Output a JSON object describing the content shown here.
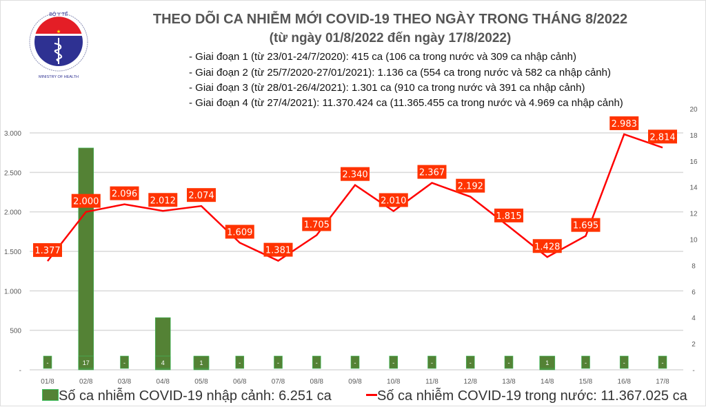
{
  "logo": {
    "text_top": "BỘ Y TẾ",
    "text_bottom": "MINISTRY OF HEALTH"
  },
  "header": {
    "title": "THEO DÕI CA NHIỄM MỚI COVID-19 THEO NGÀY TRONG THÁNG 8/2022",
    "subtitle": "(từ ngày 01/8/2022 đến ngày 17/8/2022)",
    "phases": [
      "- Giai đoạn 1 (từ 23/01-24/7/2020): 415 ca (106 ca trong nước và 309 ca nhập cảnh)",
      "- Giai đoạn 2 (từ 25/7/2020-27/01/2021): 1.136 ca (554 ca trong nước và 582 ca nhập cảnh)",
      "- Giai đoạn 3 (từ 28/01-26/4/2021): 1.301 ca (910 ca trong nước và 391 ca nhập cảnh)",
      "- Giai đoạn 4 (từ 27/4/2021): 11.370.424 ca (11.365.455 ca trong nước và 4.969 ca nhập cảnh)"
    ]
  },
  "chart_data": {
    "type": "bar+line",
    "categories": [
      "01/8",
      "02/8",
      "03/8",
      "04/8",
      "05/8",
      "06/8",
      "07/8",
      "08/8",
      "09/8",
      "10/8",
      "11/8",
      "12/8",
      "13/8",
      "14/8",
      "15/8",
      "16/8",
      "17/8"
    ],
    "left_axis": {
      "range": [
        0,
        3000
      ],
      "ticks": [
        "-",
        "500",
        "1.000",
        "1.500",
        "2.000",
        "2.500",
        "3.000"
      ]
    },
    "right_axis": {
      "range": [
        0,
        20
      ],
      "ticks": [
        "-",
        "2",
        "4",
        "6",
        "8",
        "10",
        "12",
        "14",
        "16",
        "18",
        "20"
      ]
    },
    "grid": true,
    "legend_position": "bottom",
    "colors": {
      "bar": "#548235",
      "line": "#ff0000",
      "line_label_bg": "#ff3300"
    },
    "series": [
      {
        "name": "Số ca nhiễm COVID-19 nhập cảnh: 6.251 ca",
        "type": "bar",
        "axis": "right",
        "values": [
          0,
          17,
          0,
          4,
          1,
          0,
          0,
          0,
          0,
          0,
          0,
          0,
          0,
          1,
          0,
          0,
          0
        ],
        "labels": [
          "-",
          "17",
          "-",
          "4",
          "1",
          "-",
          "-",
          "-",
          "-",
          "-",
          "-",
          "-",
          "-",
          "1",
          "-",
          "-",
          "-"
        ]
      },
      {
        "name": "Số ca nhiễm COVID-19 trong nước: 11.367.025 ca",
        "type": "line",
        "axis": "left",
        "values": [
          1377,
          2000,
          2096,
          2012,
          2074,
          1609,
          1381,
          1705,
          2340,
          2010,
          2367,
          2192,
          1815,
          1428,
          1695,
          2983,
          2814
        ],
        "labels": [
          "1.377",
          "2.000",
          "2.096",
          "2.012",
          "2.074",
          "1.609",
          "1.381",
          "1.705",
          "2.340",
          "2.010",
          "2.367",
          "2.192",
          "1.815",
          "1.428",
          "1.695",
          "2.983",
          "2.814"
        ]
      }
    ]
  }
}
